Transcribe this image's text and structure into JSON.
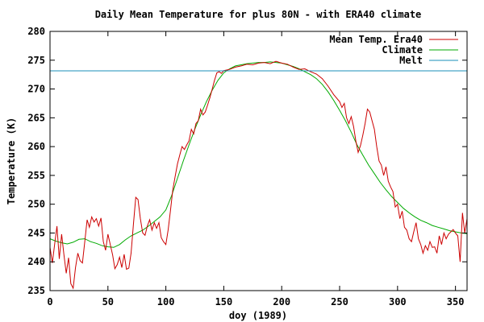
{
  "chart_data": {
    "type": "line",
    "title": "Daily Mean Temperature for plus 80N - with ERA40 climate",
    "xlabel": "doy (1989)",
    "ylabel": "Temperature (K)",
    "xlim": [
      0,
      360
    ],
    "ylim": [
      235,
      280
    ],
    "xticks": [
      0,
      50,
      100,
      150,
      200,
      250,
      300,
      350
    ],
    "yticks": [
      235,
      240,
      245,
      250,
      255,
      260,
      265,
      270,
      275,
      280
    ],
    "grid": false,
    "legend_position": "top-right",
    "series": [
      {
        "name": "Mean Temp. Era40",
        "color": "#cc0000",
        "x": [
          0,
          2,
          4,
          6,
          8,
          10,
          12,
          14,
          16,
          18,
          20,
          22,
          24,
          26,
          28,
          30,
          32,
          34,
          36,
          38,
          40,
          42,
          44,
          46,
          48,
          50,
          52,
          54,
          56,
          58,
          60,
          62,
          64,
          66,
          68,
          70,
          72,
          74,
          76,
          78,
          80,
          82,
          84,
          86,
          88,
          90,
          92,
          94,
          96,
          98,
          100,
          102,
          104,
          106,
          108,
          110,
          112,
          114,
          116,
          118,
          120,
          122,
          124,
          126,
          128,
          130,
          132,
          134,
          136,
          138,
          140,
          142,
          144,
          146,
          148,
          150,
          155,
          160,
          165,
          170,
          175,
          180,
          185,
          190,
          195,
          200,
          205,
          210,
          215,
          220,
          225,
          230,
          235,
          240,
          245,
          250,
          252,
          254,
          256,
          258,
          260,
          262,
          264,
          266,
          268,
          270,
          272,
          274,
          276,
          278,
          280,
          282,
          284,
          286,
          288,
          290,
          292,
          294,
          296,
          298,
          300,
          302,
          304,
          306,
          308,
          310,
          312,
          314,
          316,
          318,
          320,
          322,
          324,
          326,
          328,
          330,
          332,
          334,
          336,
          338,
          340,
          342,
          344,
          346,
          348,
          350,
          352,
          354,
          356,
          358,
          360
        ],
        "values": [
          242.5,
          239.8,
          243.0,
          246.2,
          240.5,
          244.8,
          241.3,
          238.0,
          240.7,
          236.2,
          235.4,
          239.0,
          241.5,
          240.2,
          239.8,
          243.5,
          247.3,
          246.0,
          247.8,
          246.9,
          247.5,
          246.2,
          247.6,
          243.5,
          242.0,
          244.8,
          243.0,
          241.2,
          238.8,
          239.5,
          240.8,
          239.0,
          241.3,
          238.7,
          238.9,
          241.5,
          246.5,
          251.2,
          250.8,
          247.5,
          245.0,
          244.6,
          246.2,
          247.3,
          245.5,
          246.8,
          245.8,
          246.8,
          244.2,
          243.5,
          243.0,
          245.6,
          249.0,
          252.5,
          254.8,
          257.0,
          258.5,
          260.0,
          259.5,
          260.3,
          261.0,
          263.0,
          262.2,
          264.0,
          264.5,
          266.5,
          265.5,
          266.0,
          267.2,
          268.5,
          270.0,
          271.5,
          272.8,
          273.0,
          272.7,
          273.2,
          273.4,
          273.8,
          274.0,
          274.3,
          274.2,
          274.5,
          274.6,
          274.4,
          274.8,
          274.5,
          274.3,
          273.8,
          273.4,
          273.5,
          273.0,
          272.6,
          271.8,
          270.5,
          269.0,
          267.8,
          266.8,
          267.5,
          265.0,
          264.0,
          265.2,
          263.5,
          261.0,
          259.0,
          260.2,
          262.0,
          264.0,
          266.5,
          266.0,
          264.5,
          263.0,
          260.0,
          257.5,
          256.8,
          255.0,
          256.5,
          254.0,
          253.0,
          252.2,
          249.5,
          250.0,
          247.5,
          248.8,
          246.0,
          245.5,
          244.0,
          243.5,
          245.2,
          246.8,
          244.0,
          243.0,
          241.5,
          242.8,
          242.0,
          243.5,
          242.5,
          242.6,
          241.5,
          244.5,
          243.0,
          245.0,
          244.0,
          244.8,
          245.2,
          245.6,
          245.0,
          244.5,
          240.0,
          248.5,
          245.0,
          247.5
        ]
      },
      {
        "name": "Climate",
        "color": "#00aa00",
        "x": [
          0,
          5,
          10,
          15,
          20,
          25,
          30,
          35,
          40,
          45,
          50,
          55,
          60,
          65,
          70,
          75,
          80,
          85,
          90,
          95,
          100,
          105,
          110,
          115,
          120,
          125,
          130,
          135,
          140,
          145,
          150,
          155,
          160,
          165,
          170,
          175,
          180,
          185,
          190,
          195,
          200,
          205,
          210,
          215,
          220,
          225,
          230,
          235,
          240,
          245,
          250,
          255,
          260,
          265,
          270,
          275,
          280,
          285,
          290,
          295,
          300,
          305,
          310,
          315,
          320,
          325,
          330,
          335,
          340,
          345,
          350,
          355,
          360
        ],
        "values": [
          244.0,
          243.6,
          243.3,
          243.1,
          243.4,
          243.9,
          244.0,
          243.5,
          243.2,
          242.8,
          242.6,
          242.5,
          243.0,
          243.8,
          244.5,
          245.0,
          245.5,
          246.2,
          247.0,
          247.8,
          249.0,
          251.5,
          254.5,
          257.5,
          260.3,
          263.0,
          265.5,
          267.8,
          269.8,
          271.5,
          272.8,
          273.5,
          274.0,
          274.2,
          274.4,
          274.5,
          274.6,
          274.6,
          274.7,
          274.6,
          274.5,
          274.2,
          273.9,
          273.5,
          273.0,
          272.5,
          271.8,
          270.8,
          269.5,
          268.0,
          266.3,
          264.5,
          262.5,
          260.3,
          258.5,
          256.8,
          255.3,
          253.8,
          252.5,
          251.3,
          250.3,
          249.3,
          248.5,
          247.8,
          247.2,
          246.8,
          246.3,
          246.0,
          245.7,
          245.4,
          245.2,
          245.0,
          244.9
        ]
      },
      {
        "name": "Melt",
        "color": "#1a8fb8",
        "x": [
          0,
          360
        ],
        "values": [
          273.15,
          273.15
        ]
      }
    ]
  }
}
